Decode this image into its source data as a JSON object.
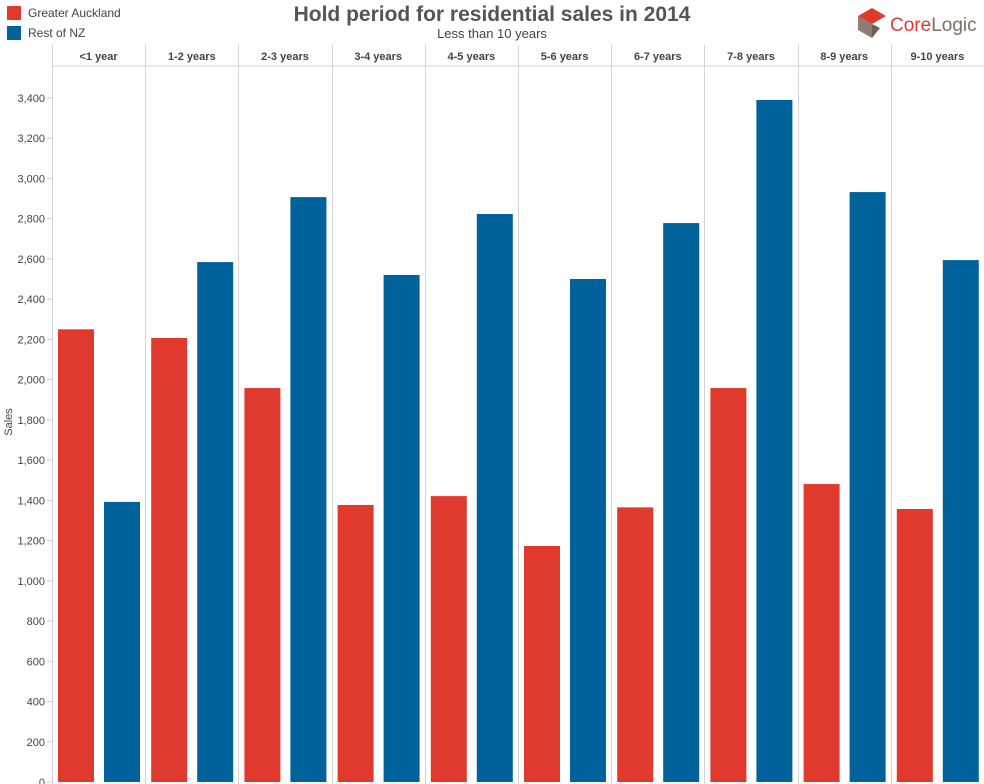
{
  "brand": {
    "name_a": "Core",
    "name_b": "Logic",
    "colors": {
      "red": "#e03a2e",
      "blue": "#00629b"
    }
  },
  "chart_data": {
    "type": "bar",
    "title": "Hold period for residential sales in 2014",
    "subtitle": "Less than 10 years",
    "xlabel": "",
    "ylabel": "Sales",
    "ylim": [
      0,
      3500
    ],
    "yticks": [
      0,
      200,
      400,
      600,
      800,
      1000,
      1200,
      1400,
      1600,
      1800,
      2000,
      2200,
      2400,
      2600,
      2800,
      3000,
      3200,
      3400
    ],
    "ytick_labels": [
      "0",
      "200",
      "400",
      "600",
      "800",
      "1,000",
      "1,200",
      "1,400",
      "1,600",
      "1,800",
      "2,000",
      "2,200",
      "2,400",
      "2,600",
      "2,800",
      "3,000",
      "3,200",
      "3,400"
    ],
    "categories": [
      "<1 year",
      "1-2 years",
      "2-3 years",
      "3-4 years",
      "4-5 years",
      "5-6 years",
      "6-7 years",
      "7-8 years",
      "8-9 years",
      "9-10 years"
    ],
    "legend_position": "top-left",
    "series": [
      {
        "name": "Greater Auckland",
        "color": "#e03a2e",
        "values": [
          2250,
          2207,
          1958,
          1377,
          1421,
          1173,
          1365,
          1958,
          1481,
          1357
        ]
      },
      {
        "name": "Rest of NZ",
        "color": "#00629b",
        "values": [
          1392,
          2584,
          2907,
          2520,
          2823,
          2500,
          2778,
          3390,
          2932,
          2594
        ]
      }
    ]
  }
}
